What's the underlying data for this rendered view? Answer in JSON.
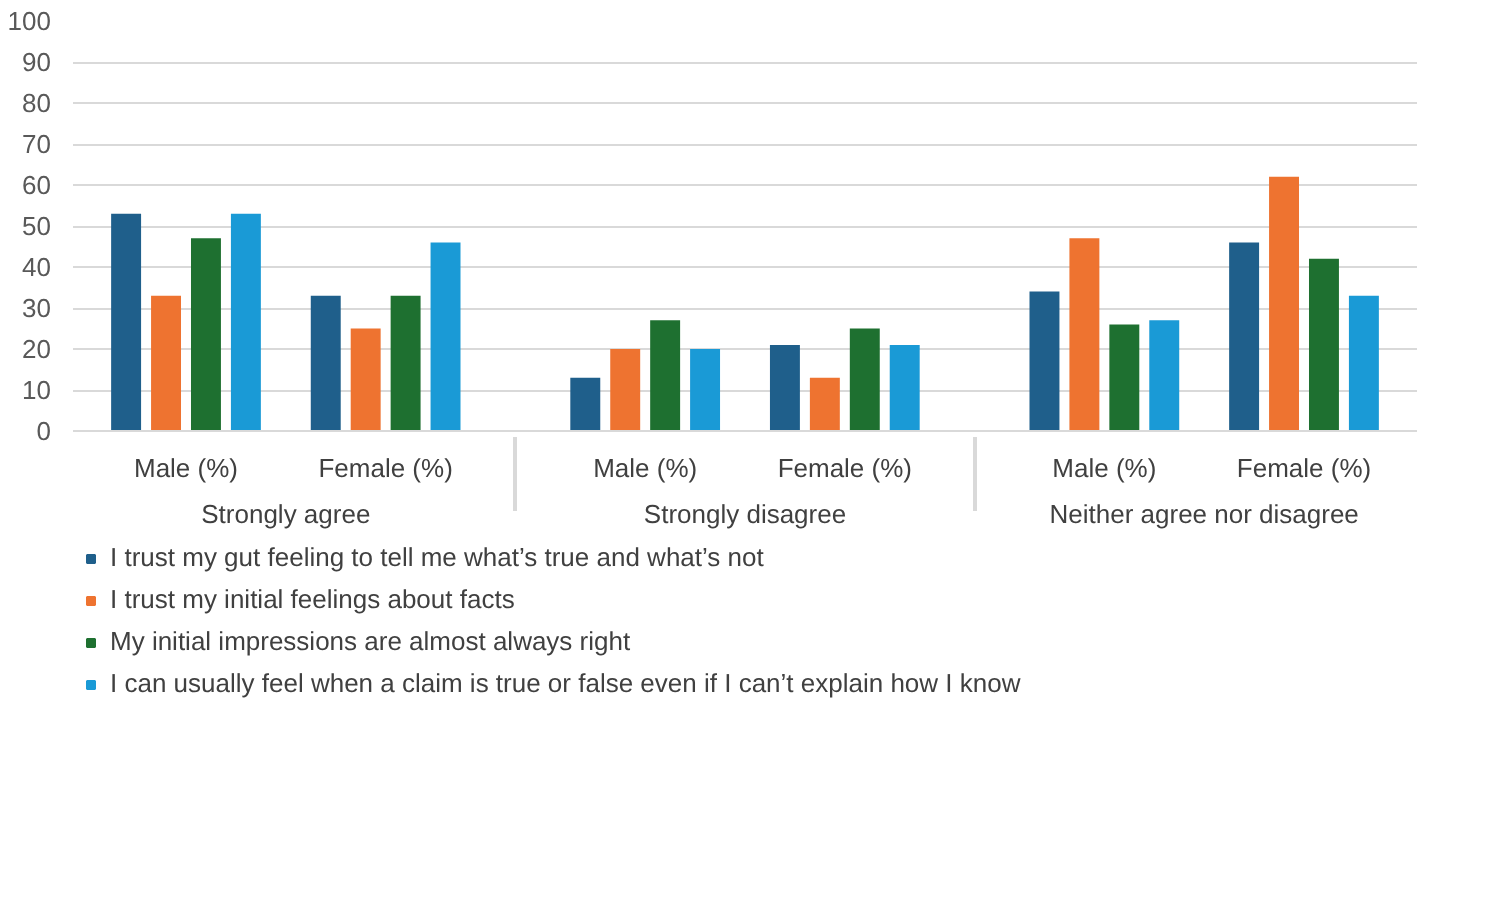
{
  "chart_data": {
    "type": "bar",
    "categories": [
      "Male (%)",
      "Female (%)",
      "Male (%)",
      "Female (%)",
      "Male (%)",
      "Female (%)"
    ],
    "annotations": [
      "Strongly agree",
      "Strongly disagree",
      "Neither agree nor disagree"
    ],
    "series": [
      {
        "name": "I trust my gut feeling to tell me what’s true and what’s not",
        "color": "#1f5f8b",
        "values": [
          53,
          33,
          13,
          21,
          34,
          46
        ]
      },
      {
        "name": "I trust my initial feelings about facts",
        "color": "#ee7330",
        "values": [
          33,
          25,
          20,
          13,
          47,
          62
        ]
      },
      {
        "name": "My initial impressions are almost always right",
        "color": "#1e7030",
        "values": [
          47,
          33,
          27,
          25,
          26,
          42
        ]
      },
      {
        "name": "I can usually feel when a claim is true or false even if I can’t explain how I know",
        "color": "#1a9ad6",
        "values": [
          53,
          46,
          20,
          21,
          27,
          33
        ]
      }
    ],
    "ylim": [
      0,
      100
    ],
    "yticks": [
      0,
      10,
      20,
      30,
      40,
      50,
      60,
      70,
      80,
      90,
      100
    ],
    "grid": "y",
    "legend": "bottom"
  }
}
